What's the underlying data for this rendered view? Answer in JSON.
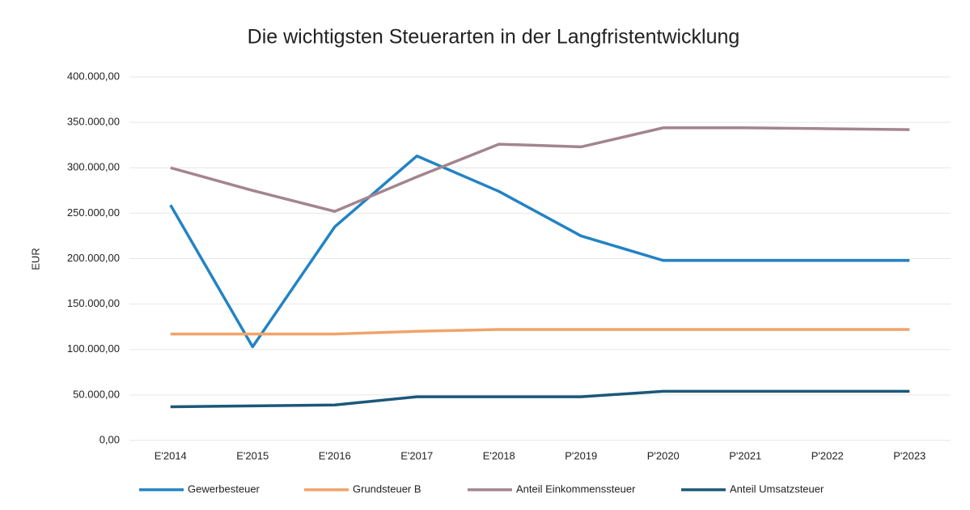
{
  "chart_data": {
    "type": "line",
    "title": "Die wichtigsten Steuerarten in der Langfristentwicklung",
    "y_label": "EUR",
    "categories": [
      "E'2014",
      "E'2015",
      "E'2016",
      "E'2017",
      "E'2018",
      "P'2019",
      "P'2020",
      "P'2021",
      "P'2022",
      "P'2023"
    ],
    "series": [
      {
        "name": "Gewerbesteuer",
        "color": "#2383c4",
        "values": [
          259000,
          103000,
          235000,
          313000,
          274000,
          225000,
          198000,
          198000,
          198000,
          198000
        ]
      },
      {
        "name": "Grundsteuer B",
        "color": "#f0a46a",
        "values": [
          117000,
          117000,
          117000,
          120000,
          122000,
          122000,
          122000,
          122000,
          122000,
          122000
        ]
      },
      {
        "name": "Anteil Einkommenssteuer",
        "color": "#a3858f",
        "values": [
          300000,
          275000,
          252000,
          290000,
          326000,
          323000,
          344000,
          344000,
          343000,
          342000
        ]
      },
      {
        "name": "Anteil Umsatzsteuer",
        "color": "#1b5878",
        "values": [
          37000,
          38000,
          39000,
          48000,
          48000,
          48000,
          54000,
          54000,
          54000,
          54000
        ]
      }
    ],
    "ylim": [
      0,
      400000
    ],
    "yticks": [
      {
        "value": 0,
        "label": "0,00"
      },
      {
        "value": 50000,
        "label": "50.000,00"
      },
      {
        "value": 100000,
        "label": "100.000,00"
      },
      {
        "value": 150000,
        "label": "150.000,00"
      },
      {
        "value": 200000,
        "label": "200.000,00"
      },
      {
        "value": 250000,
        "label": "250.000,00"
      },
      {
        "value": 300000,
        "label": "300.000,00"
      },
      {
        "value": 350000,
        "label": "350.000,00"
      },
      {
        "value": 400000,
        "label": "400.000,00"
      }
    ],
    "grid": true,
    "legend": "bottom"
  }
}
